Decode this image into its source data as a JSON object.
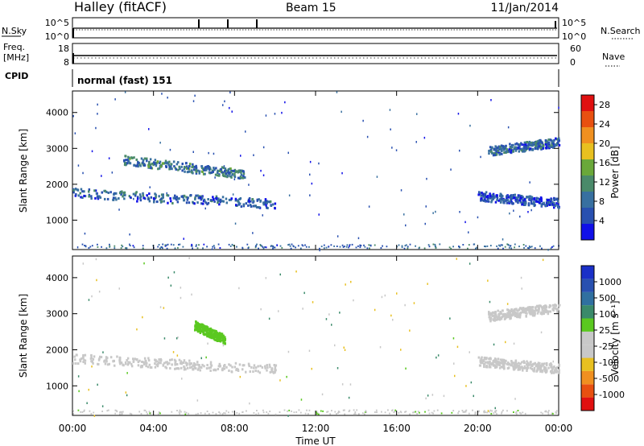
{
  "header": {
    "title": "Halley (fitACF)",
    "beam": "Beam 15",
    "date": "11/Jan/2014"
  },
  "strips": {
    "nsky": {
      "label": "N.Sky",
      "right_label": "N.Search",
      "left_ticks": [
        "10^5",
        "10^0"
      ],
      "right_ticks": [
        "10^5",
        "10^0"
      ]
    },
    "freq": {
      "label_line1": "Freq.",
      "label_line2": "[MHz]",
      "right_label": "Nave",
      "left_ticks": [
        "18",
        "8"
      ],
      "right_ticks": [
        "60",
        "0"
      ]
    },
    "cpid": {
      "label": "CPID",
      "value": "normal (fast) 151"
    }
  },
  "colors": {
    "power": [
      "#1010e8",
      "#2850b0",
      "#3870a0",
      "#4a8a6a",
      "#6aa83a",
      "#e8c020",
      "#f09020",
      "#e85010",
      "#e01010"
    ],
    "velocity": [
      "#e01010",
      "#e85010",
      "#f09020",
      "#e8c020",
      "#c8c8c8",
      "#c8c8c8",
      "#5ac820",
      "#3a8a6a",
      "#3070a0",
      "#2850b0",
      "#1a30c8"
    ]
  },
  "chart_data": [
    {
      "type": "heatmap",
      "name": "power",
      "ylabel": "Slant Range [km]",
      "xlabel": "",
      "xlim": [
        0,
        24
      ],
      "ylim": [
        180,
        4600
      ],
      "x_ticks": [
        "00:00",
        "04:00",
        "08:00",
        "12:00",
        "16:00",
        "20:00",
        "00:00"
      ],
      "y_ticks": [
        1000,
        2000,
        3000,
        4000
      ],
      "colorbar": {
        "label": "Power [dB]",
        "range": [
          0,
          30
        ],
        "ticks": [
          4,
          8,
          12,
          16,
          20,
          24,
          28
        ]
      },
      "echo_regions": [
        {
          "t_start": 0.0,
          "t_end": 10.0,
          "r_start": 1780,
          "r_end": 1480,
          "value": 7
        },
        {
          "t_start": 2.5,
          "t_end": 8.5,
          "r_start": 2700,
          "r_end": 2300,
          "value": 9
        },
        {
          "t_start": 20.5,
          "t_end": 24.0,
          "r_start": 2950,
          "r_end": 3200,
          "value": 7
        },
        {
          "t_start": 20.0,
          "t_end": 24.0,
          "r_start": 1700,
          "r_end": 1500,
          "value": 5
        }
      ]
    },
    {
      "type": "heatmap",
      "name": "velocity",
      "ylabel": "Slant Range [km]",
      "xlabel": "Time UT",
      "xlim": [
        0,
        24
      ],
      "ylim": [
        180,
        4600
      ],
      "x_ticks": [
        "00:00",
        "04:00",
        "08:00",
        "12:00",
        "16:00",
        "20:00",
        "00:00"
      ],
      "y_ticks": [
        1000,
        2000,
        3000,
        4000
      ],
      "colorbar": {
        "label": "Velocity [m s⁻¹]",
        "ticks": [
          "1000",
          "500",
          "100",
          "25",
          "-25",
          "-100",
          "-500",
          "-1000"
        ]
      },
      "echo_regions": [
        {
          "t_start": 0.0,
          "t_end": 10.0,
          "r_start": 1780,
          "r_end": 1480,
          "value": 0
        },
        {
          "t_start": 6.0,
          "t_end": 7.5,
          "r_start": 2700,
          "r_end": 2300,
          "value": 80
        },
        {
          "t_start": 20.5,
          "t_end": 24.0,
          "r_start": 2950,
          "r_end": 3200,
          "value": 0
        },
        {
          "t_start": 20.0,
          "t_end": 24.0,
          "r_start": 1700,
          "r_end": 1500,
          "value": 0
        }
      ]
    }
  ]
}
